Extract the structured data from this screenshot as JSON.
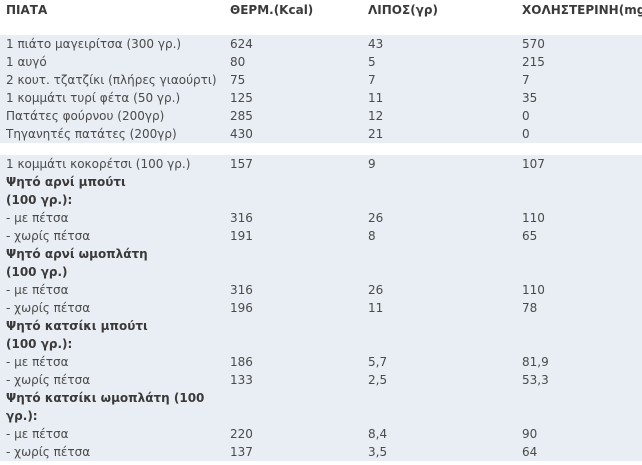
{
  "headers": [
    "ΠΙΑΤΑ",
    "ΘΕΡΜ.(Kcal)",
    "ΛΙΠΟΣ(γρ)",
    "ΧΟΛΗΣΤΕΡΙΝΗ(mg)"
  ],
  "rows": [
    {
      "kind": "spacer",
      "cells": [
        "",
        "",
        "",
        ""
      ]
    },
    {
      "kind": "data",
      "cells": [
        "1  πιάτο μαγειρίτσα (300 γρ.)",
        "624",
        "43",
        "570"
      ]
    },
    {
      "kind": "data",
      "cells": [
        "1 αυγό",
        "80",
        "5",
        "215"
      ]
    },
    {
      "kind": "data",
      "cells": [
        "2 κουτ. τζατζίκι (πλήρες γιαούρτι)",
        "75",
        "7",
        "7"
      ]
    },
    {
      "kind": "data",
      "cells": [
        "1 κομμάτι τυρί φέτα (50 γρ.)",
        "125",
        "11",
        "35"
      ]
    },
    {
      "kind": "data",
      "cells": [
        "Πατάτες φούρνου (200γρ)",
        "285",
        "12",
        "0"
      ]
    },
    {
      "kind": "data",
      "cells": [
        "Τηγανητές πατάτες (200γρ)",
        "430",
        "21",
        "0"
      ]
    },
    {
      "kind": "blank",
      "cells": [
        "",
        "",
        "",
        ""
      ]
    },
    {
      "kind": "data",
      "cells": [
        "1 κομμάτι κοκορέτσι (100 γρ.)",
        "157",
        "9",
        "107"
      ]
    },
    {
      "kind": "heading",
      "cells": [
        "Ψητό αρνί μπούτι",
        "",
        "",
        ""
      ]
    },
    {
      "kind": "heading",
      "cells": [
        "(100 γρ.):",
        "",
        "",
        ""
      ]
    },
    {
      "kind": "data",
      "cells": [
        "- με πέτσα",
        "316",
        "26",
        "110"
      ]
    },
    {
      "kind": "data",
      "cells": [
        "- χωρίς πέτσα",
        "191",
        "8",
        "65"
      ]
    },
    {
      "kind": "heading",
      "cells": [
        "Ψητό αρνί ωμοπλάτη",
        "",
        "",
        ""
      ]
    },
    {
      "kind": "heading",
      "cells": [
        " (100 γρ.)",
        "",
        "",
        ""
      ]
    },
    {
      "kind": "data",
      "cells": [
        "- με πέτσα",
        "316",
        "26",
        "110"
      ]
    },
    {
      "kind": "data",
      "cells": [
        "- χωρίς πέτσα",
        "196",
        "11",
        "78"
      ]
    },
    {
      "kind": "heading",
      "cells": [
        "Ψητό κατσίκι μπούτι",
        "",
        "",
        ""
      ]
    },
    {
      "kind": "heading",
      "cells": [
        "(100 γρ.):",
        "",
        "",
        ""
      ]
    },
    {
      "kind": "data",
      "cells": [
        "- με πέτσα",
        "186",
        "5,7",
        "81,9"
      ]
    },
    {
      "kind": "data",
      "cells": [
        "- χωρίς πέτσα",
        "133",
        "2,5",
        "53,3"
      ]
    },
    {
      "kind": "heading",
      "cells": [
        "Ψητό κατσίκι ωμοπλάτη (100",
        "",
        "",
        ""
      ]
    },
    {
      "kind": "heading",
      "cells": [
        "γρ.):",
        "",
        "",
        ""
      ]
    },
    {
      "kind": "data",
      "cells": [
        "- με πέτσα",
        "220",
        "8,4",
        "90"
      ]
    },
    {
      "kind": "data",
      "cells": [
        "- χωρίς πέτσα",
        "137",
        "3,5",
        "64"
      ]
    }
  ]
}
